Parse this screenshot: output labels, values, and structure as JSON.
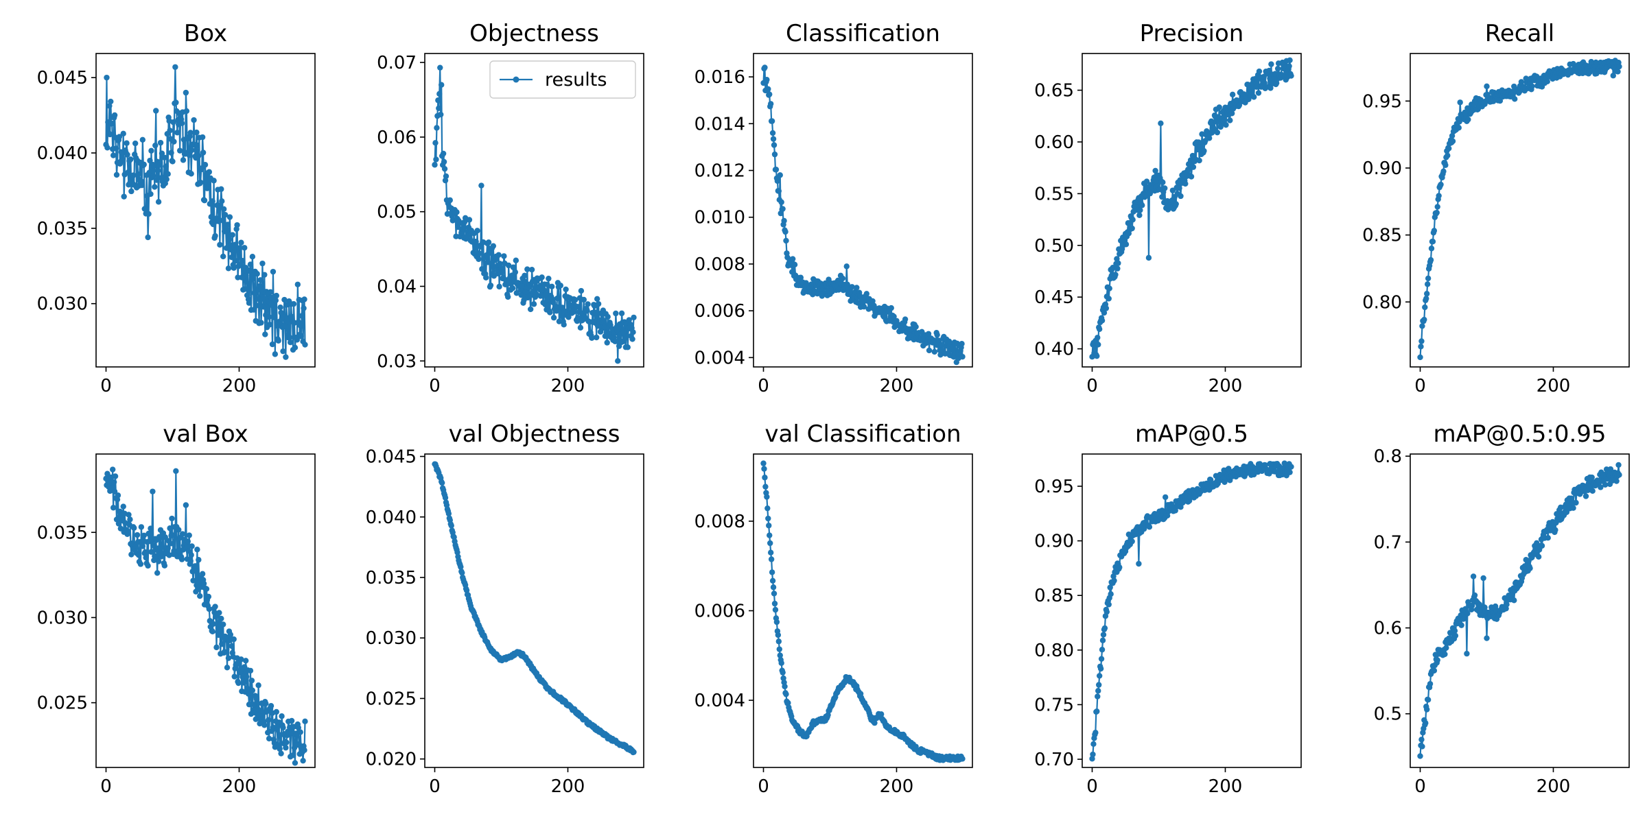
{
  "figure": {
    "line_color": "#1f77b4",
    "background": "#ffffff",
    "axes_color": "#000000"
  },
  "chart_data": [
    {
      "id": "box",
      "type": "line",
      "title": "Box",
      "x_range": [
        0,
        299
      ],
      "ylim": [
        0.0258,
        0.0466
      ],
      "xticks": [
        0,
        200
      ],
      "yticks": [
        0.03,
        0.035,
        0.04,
        0.045
      ],
      "ytick_decimals": 3,
      "shape": "trend",
      "anchors": [
        [
          0,
          0.042
        ],
        [
          5,
          0.043
        ],
        [
          15,
          0.0405
        ],
        [
          30,
          0.0388
        ],
        [
          60,
          0.0385
        ],
        [
          90,
          0.039
        ],
        [
          105,
          0.042
        ],
        [
          125,
          0.0412
        ],
        [
          150,
          0.0385
        ],
        [
          175,
          0.035
        ],
        [
          200,
          0.033
        ],
        [
          230,
          0.0305
        ],
        [
          260,
          0.029
        ],
        [
          299,
          0.0283
        ]
      ],
      "noise": 0.0019,
      "spikes": [
        [
          1,
          0.045
        ],
        [
          104,
          0.0457
        ],
        [
          63,
          0.0344
        ],
        [
          120,
          0.044
        ],
        [
          75,
          0.0428
        ]
      ],
      "series": [
        {
          "name": "results"
        }
      ],
      "legend": false
    },
    {
      "id": "obj",
      "type": "line",
      "title": "Objectness",
      "x_range": [
        0,
        299
      ],
      "ylim": [
        0.0292,
        0.0712
      ],
      "xticks": [
        0,
        200
      ],
      "yticks": [
        0.03,
        0.04,
        0.05,
        0.06,
        0.07
      ],
      "ytick_decimals": 2,
      "shape": "trend",
      "anchors": [
        [
          0,
          0.058
        ],
        [
          3,
          0.062
        ],
        [
          7,
          0.065
        ],
        [
          12,
          0.058
        ],
        [
          20,
          0.051
        ],
        [
          40,
          0.048
        ],
        [
          80,
          0.043
        ],
        [
          120,
          0.041
        ],
        [
          160,
          0.039
        ],
        [
          200,
          0.037
        ],
        [
          240,
          0.0355
        ],
        [
          280,
          0.0335
        ],
        [
          299,
          0.034
        ]
      ],
      "noise": 0.0022,
      "spikes": [
        [
          8,
          0.0693
        ],
        [
          10,
          0.067
        ],
        [
          70,
          0.0535
        ],
        [
          2,
          0.057
        ],
        [
          275,
          0.03
        ]
      ],
      "series": [
        {
          "name": "results"
        }
      ],
      "legend": true,
      "legend_label": "results"
    },
    {
      "id": "cls",
      "type": "line",
      "title": "Classification",
      "x_range": [
        0,
        299
      ],
      "ylim": [
        0.0036,
        0.017
      ],
      "xticks": [
        0,
        200
      ],
      "yticks": [
        0.004,
        0.006,
        0.008,
        0.01,
        0.012,
        0.014,
        0.016
      ],
      "ytick_decimals": 3,
      "shape": "trend",
      "anchors": [
        [
          0,
          0.016
        ],
        [
          5,
          0.0158
        ],
        [
          10,
          0.0148
        ],
        [
          15,
          0.0132
        ],
        [
          20,
          0.0115
        ],
        [
          25,
          0.0105
        ],
        [
          30,
          0.01
        ],
        [
          35,
          0.0085
        ],
        [
          45,
          0.0078
        ],
        [
          60,
          0.007
        ],
        [
          90,
          0.0069
        ],
        [
          120,
          0.0071
        ],
        [
          150,
          0.0065
        ],
        [
          180,
          0.0058
        ],
        [
          210,
          0.0054
        ],
        [
          240,
          0.0048
        ],
        [
          270,
          0.0045
        ],
        [
          299,
          0.0043
        ]
      ],
      "noise": 0.00033,
      "spikes": [
        [
          2,
          0.0164
        ],
        [
          25,
          0.0118
        ],
        [
          125,
          0.0079
        ],
        [
          290,
          0.0038
        ]
      ],
      "series": [
        {
          "name": "results"
        }
      ],
      "legend": false
    },
    {
      "id": "prec",
      "type": "line",
      "title": "Precision",
      "x_range": [
        0,
        299
      ],
      "ylim": [
        0.3825,
        0.6855
      ],
      "xticks": [
        0,
        200
      ],
      "yticks": [
        0.4,
        0.45,
        0.5,
        0.55,
        0.6,
        0.65
      ],
      "ytick_decimals": 2,
      "shape": "trend",
      "anchors": [
        [
          0,
          0.4
        ],
        [
          5,
          0.4
        ],
        [
          15,
          0.43
        ],
        [
          30,
          0.47
        ],
        [
          50,
          0.51
        ],
        [
          70,
          0.54
        ],
        [
          90,
          0.56
        ],
        [
          100,
          0.565
        ],
        [
          110,
          0.54
        ],
        [
          130,
          0.55
        ],
        [
          150,
          0.58
        ],
        [
          180,
          0.615
        ],
        [
          210,
          0.635
        ],
        [
          240,
          0.65
        ],
        [
          270,
          0.665
        ],
        [
          299,
          0.668
        ]
      ],
      "noise": 0.0095,
      "spikes": [
        [
          103,
          0.618
        ],
        [
          7,
          0.393
        ],
        [
          85,
          0.488
        ],
        [
          280,
          0.676
        ]
      ],
      "series": [
        {
          "name": "results"
        }
      ],
      "legend": false
    },
    {
      "id": "rec",
      "type": "line",
      "title": "Recall",
      "x_range": [
        0,
        299
      ],
      "ylim": [
        0.7515,
        0.9855
      ],
      "xticks": [
        0,
        200
      ],
      "yticks": [
        0.8,
        0.85,
        0.9,
        0.95
      ],
      "ytick_decimals": 2,
      "shape": "trend",
      "anchors": [
        [
          0,
          0.762
        ],
        [
          3,
          0.78
        ],
        [
          8,
          0.8
        ],
        [
          15,
          0.83
        ],
        [
          25,
          0.87
        ],
        [
          35,
          0.9
        ],
        [
          45,
          0.92
        ],
        [
          60,
          0.935
        ],
        [
          80,
          0.945
        ],
        [
          100,
          0.952
        ],
        [
          130,
          0.953
        ],
        [
          160,
          0.962
        ],
        [
          200,
          0.97
        ],
        [
          240,
          0.975
        ],
        [
          299,
          0.976
        ]
      ],
      "noise": 0.004,
      "spikes": [
        [
          60,
          0.949
        ],
        [
          100,
          0.961
        ],
        [
          290,
          0.969
        ]
      ],
      "series": [
        {
          "name": "results"
        }
      ],
      "legend": false
    },
    {
      "id": "vbox",
      "type": "line",
      "title": "val Box",
      "x_range": [
        0,
        299
      ],
      "ylim": [
        0.0212,
        0.0396
      ],
      "xticks": [
        0,
        200
      ],
      "yticks": [
        0.025,
        0.03,
        0.035
      ],
      "ytick_decimals": 3,
      "shape": "trend",
      "anchors": [
        [
          0,
          0.039
        ],
        [
          10,
          0.0375
        ],
        [
          20,
          0.036
        ],
        [
          30,
          0.035
        ],
        [
          45,
          0.0345
        ],
        [
          60,
          0.0338
        ],
        [
          80,
          0.034
        ],
        [
          100,
          0.0345
        ],
        [
          120,
          0.034
        ],
        [
          140,
          0.0325
        ],
        [
          160,
          0.03
        ],
        [
          180,
          0.0285
        ],
        [
          200,
          0.027
        ],
        [
          230,
          0.0245
        ],
        [
          260,
          0.0232
        ],
        [
          299,
          0.0226
        ]
      ],
      "noise": 0.001,
      "spikes": [
        [
          105,
          0.0386
        ],
        [
          70,
          0.0374
        ],
        [
          120,
          0.0366
        ],
        [
          295,
          0.0221
        ]
      ],
      "series": [
        {
          "name": "results"
        }
      ],
      "legend": false
    },
    {
      "id": "vobj",
      "type": "line",
      "title": "val Objectness",
      "x_range": [
        0,
        299
      ],
      "ylim": [
        0.0193,
        0.0452
      ],
      "xticks": [
        0,
        200
      ],
      "yticks": [
        0.02,
        0.025,
        0.03,
        0.035,
        0.04,
        0.045
      ],
      "ytick_decimals": 3,
      "shape": "smooth",
      "anchors": [
        [
          0,
          0.0444
        ],
        [
          10,
          0.043
        ],
        [
          20,
          0.0405
        ],
        [
          30,
          0.038
        ],
        [
          40,
          0.0355
        ],
        [
          55,
          0.0325
        ],
        [
          70,
          0.0305
        ],
        [
          85,
          0.029
        ],
        [
          100,
          0.0282
        ],
        [
          115,
          0.0285
        ],
        [
          125,
          0.0288
        ],
        [
          135,
          0.0285
        ],
        [
          150,
          0.0272
        ],
        [
          170,
          0.0258
        ],
        [
          200,
          0.0245
        ],
        [
          230,
          0.023
        ],
        [
          260,
          0.0218
        ],
        [
          280,
          0.0212
        ],
        [
          299,
          0.0206
        ]
      ],
      "noise": 0.00012,
      "series": [
        {
          "name": "results"
        }
      ],
      "legend": false
    },
    {
      "id": "vcls",
      "type": "line",
      "title": "val Classification",
      "x_range": [
        0,
        299
      ],
      "ylim": [
        0.0025,
        0.0095
      ],
      "xticks": [
        0,
        200
      ],
      "yticks": [
        0.004,
        0.006,
        0.008
      ],
      "ytick_decimals": 3,
      "shape": "smooth",
      "anchors": [
        [
          0,
          0.0093
        ],
        [
          5,
          0.0085
        ],
        [
          10,
          0.0075
        ],
        [
          15,
          0.0065
        ],
        [
          20,
          0.0057
        ],
        [
          25,
          0.005
        ],
        [
          30,
          0.0045
        ],
        [
          35,
          0.004
        ],
        [
          45,
          0.0035
        ],
        [
          55,
          0.0033
        ],
        [
          65,
          0.0032
        ],
        [
          75,
          0.0035
        ],
        [
          95,
          0.0036
        ],
        [
          110,
          0.0042
        ],
        [
          125,
          0.0045
        ],
        [
          135,
          0.0044
        ],
        [
          150,
          0.004
        ],
        [
          165,
          0.0035
        ],
        [
          175,
          0.0037
        ],
        [
          185,
          0.0034
        ],
        [
          210,
          0.0032
        ],
        [
          230,
          0.0029
        ],
        [
          250,
          0.0028
        ],
        [
          265,
          0.0027
        ],
        [
          280,
          0.0027
        ],
        [
          299,
          0.0027
        ]
      ],
      "noise": 5e-05,
      "series": [
        {
          "name": "results"
        }
      ],
      "legend": false
    },
    {
      "id": "map50",
      "type": "line",
      "title": "mAP@0.5",
      "x_range": [
        0,
        299
      ],
      "ylim": [
        0.6925,
        0.9795
      ],
      "xticks": [
        0,
        200
      ],
      "yticks": [
        0.7,
        0.75,
        0.8,
        0.85,
        0.9,
        0.95
      ],
      "ytick_decimals": 2,
      "shape": "trend",
      "anchors": [
        [
          0,
          0.7
        ],
        [
          5,
          0.73
        ],
        [
          10,
          0.77
        ],
        [
          15,
          0.8
        ],
        [
          20,
          0.83
        ],
        [
          30,
          0.86
        ],
        [
          40,
          0.88
        ],
        [
          55,
          0.9
        ],
        [
          70,
          0.91
        ],
        [
          90,
          0.92
        ],
        [
          110,
          0.925
        ],
        [
          130,
          0.935
        ],
        [
          160,
          0.945
        ],
        [
          200,
          0.96
        ],
        [
          240,
          0.965
        ],
        [
          299,
          0.966
        ]
      ],
      "noise": 0.0045,
      "spikes": [
        [
          70,
          0.879
        ],
        [
          110,
          0.94
        ]
      ],
      "series": [
        {
          "name": "results"
        }
      ],
      "legend": false
    },
    {
      "id": "map95",
      "type": "line",
      "title": "mAP@0.5:0.95",
      "x_range": [
        0,
        299
      ],
      "ylim": [
        0.4375,
        0.8025
      ],
      "xticks": [
        0,
        200
      ],
      "yticks": [
        0.5,
        0.6,
        0.7,
        0.8
      ],
      "ytick_decimals": 1,
      "shape": "trend",
      "anchors": [
        [
          0,
          0.45
        ],
        [
          5,
          0.48
        ],
        [
          10,
          0.51
        ],
        [
          15,
          0.54
        ],
        [
          25,
          0.565
        ],
        [
          40,
          0.58
        ],
        [
          60,
          0.61
        ],
        [
          80,
          0.63
        ],
        [
          100,
          0.615
        ],
        [
          120,
          0.62
        ],
        [
          140,
          0.64
        ],
        [
          160,
          0.67
        ],
        [
          180,
          0.695
        ],
        [
          200,
          0.72
        ],
        [
          230,
          0.75
        ],
        [
          260,
          0.77
        ],
        [
          280,
          0.775
        ],
        [
          299,
          0.78
        ]
      ],
      "noise": 0.008,
      "spikes": [
        [
          80,
          0.66
        ],
        [
          95,
          0.658
        ],
        [
          70,
          0.57
        ],
        [
          100,
          0.588
        ]
      ],
      "series": [
        {
          "name": "results"
        }
      ],
      "legend": false
    }
  ]
}
